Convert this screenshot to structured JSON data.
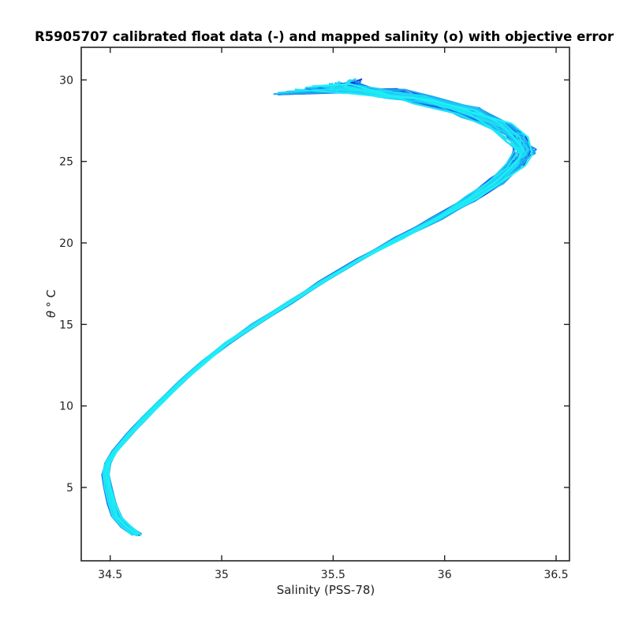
{
  "chart_data": {
    "type": "line",
    "title": "R5905707 calibrated float data (-) and mapped salinity (o) with objective error",
    "xlabel": "Salinity (PSS-78)",
    "ylabel_symbol": "θ",
    "ylabel_rest": "° C",
    "xlim": [
      34.37,
      36.56
    ],
    "ylim": [
      0.5,
      32
    ],
    "xticks": [
      34.5,
      35,
      35.5,
      36,
      36.5
    ],
    "yticks": [
      5,
      10,
      15,
      20,
      25,
      30
    ],
    "xtick_labels": [
      "34.5",
      "35",
      "35.5",
      "36",
      "36.5"
    ],
    "ytick_labels": [
      "5",
      "10",
      "15",
      "20",
      "25",
      "30"
    ],
    "grid": false,
    "legend": "none",
    "color_ramp": [
      "#0000e0",
      "#0a50e6",
      "#1e96f0",
      "#1ec8f5",
      "#1ef0f5"
    ],
    "profile_count": 40,
    "base_profile": [
      {
        "s": 34.62,
        "t": 2.1
      },
      {
        "s": 34.57,
        "t": 2.6
      },
      {
        "s": 34.53,
        "t": 3.2
      },
      {
        "s": 34.51,
        "t": 4.0
      },
      {
        "s": 34.49,
        "t": 5.0
      },
      {
        "s": 34.48,
        "t": 5.8
      },
      {
        "s": 34.49,
        "t": 6.5
      },
      {
        "s": 34.52,
        "t": 7.2
      },
      {
        "s": 34.58,
        "t": 8.2
      },
      {
        "s": 34.65,
        "t": 9.2
      },
      {
        "s": 34.73,
        "t": 10.3
      },
      {
        "s": 34.82,
        "t": 11.5
      },
      {
        "s": 34.92,
        "t": 12.7
      },
      {
        "s": 35.02,
        "t": 13.8
      },
      {
        "s": 35.15,
        "t": 15.0
      },
      {
        "s": 35.3,
        "t": 16.3
      },
      {
        "s": 35.45,
        "t": 17.6
      },
      {
        "s": 35.62,
        "t": 19.0
      },
      {
        "s": 35.8,
        "t": 20.3
      },
      {
        "s": 35.97,
        "t": 21.5
      },
      {
        "s": 36.12,
        "t": 22.7
      },
      {
        "s": 36.24,
        "t": 23.8
      },
      {
        "s": 36.32,
        "t": 24.8
      },
      {
        "s": 36.36,
        "t": 25.6
      },
      {
        "s": 36.33,
        "t": 26.4
      },
      {
        "s": 36.25,
        "t": 27.2
      },
      {
        "s": 36.12,
        "t": 28.0
      },
      {
        "s": 35.95,
        "t": 28.7
      },
      {
        "s": 35.78,
        "t": 29.2
      },
      {
        "s": 35.6,
        "t": 29.5
      },
      {
        "s": 35.45,
        "t": 29.6
      }
    ]
  }
}
